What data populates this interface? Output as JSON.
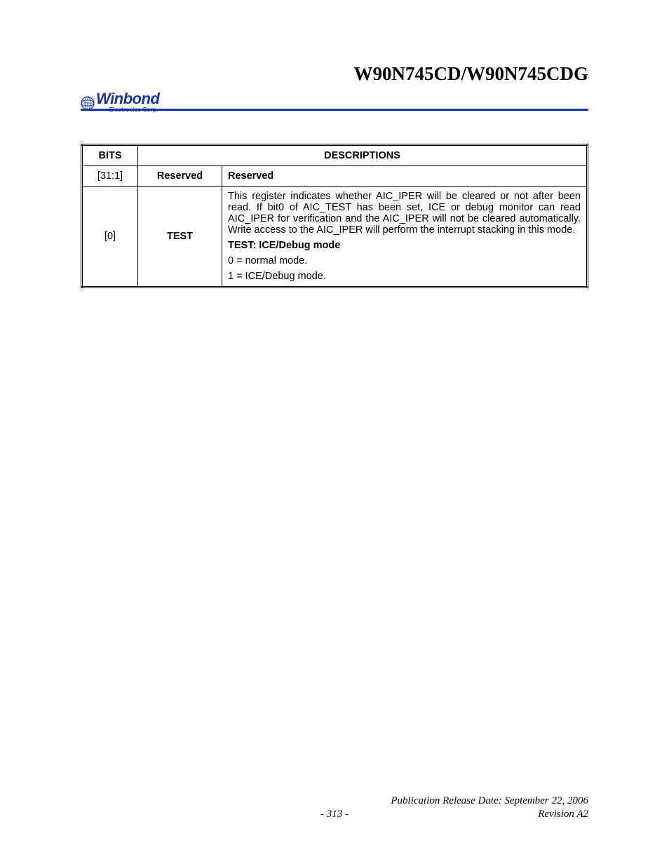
{
  "colors": {
    "brand": "#1436a6",
    "rule": "#1436a6",
    "text": "#000000",
    "border": "#000000",
    "background": "#ffffff"
  },
  "header": {
    "doc_title": "W90N745CD/W90N745CDG",
    "logo_main": "Winbond",
    "logo_sub": "Electronics Corp."
  },
  "table": {
    "headers": {
      "bits": "BITS",
      "descriptions": "DESCRIPTIONS"
    },
    "rows": [
      {
        "bits": "[31:1]",
        "name": "Reserved",
        "desc_lines": [
          {
            "text": "Reserved",
            "bold": true
          }
        ]
      },
      {
        "bits": "[0]",
        "name": "TEST",
        "desc_lines": [
          {
            "text": "This register indicates whether AIC_IPER will be cleared or not after been read. If bit0 of AIC_TEST has been set, ICE or debug monitor can read AIC_IPER for verification and the AIC_IPER will not be cleared automatically. Write access to the AIC_IPER will perform the interrupt stacking in this mode.",
            "bold": false,
            "justify": true
          },
          {
            "text": "TEST: ICE/Debug mode",
            "bold": true
          },
          {
            "text": "0 = normal mode.",
            "bold": false
          },
          {
            "text": "1 = ICE/Debug mode.",
            "bold": false
          }
        ]
      }
    ]
  },
  "footer": {
    "pub_date": "Publication Release Date: September 22, 2006",
    "page_num": "- 313 -",
    "revision": "Revision A2"
  }
}
